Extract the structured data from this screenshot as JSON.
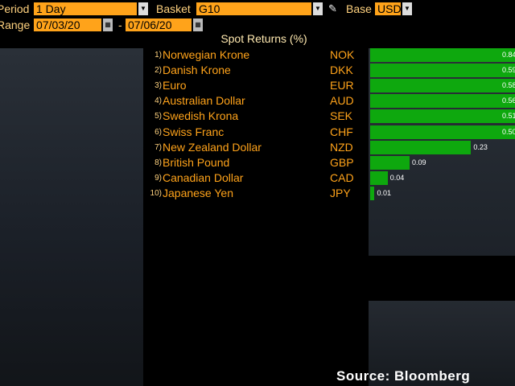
{
  "toolbar": {
    "period_label": "Period",
    "period_value": "1 Day",
    "basket_label": "Basket",
    "basket_value": "G10",
    "base_label": "Base",
    "base_value": "USD",
    "range_label": "Range",
    "range_start": "07/03/20",
    "range_sep": "-",
    "range_end": "07/06/20"
  },
  "chart_title": "Spot Returns (%)",
  "chart_data": {
    "type": "bar",
    "title": "Spot Returns (%)",
    "categories": [
      "Norwegian Krone",
      "Danish Krone",
      "Euro",
      "Australian Dollar",
      "Swedish Krona",
      "Swiss Franc",
      "New Zealand Dollar",
      "British Pound",
      "Canadian Dollar",
      "Japanese Yen"
    ],
    "codes": [
      "NOK",
      "DKK",
      "EUR",
      "AUD",
      "SEK",
      "CHF",
      "NZD",
      "GBP",
      "CAD",
      "JPY"
    ],
    "values": [
      0.84,
      0.59,
      0.58,
      0.56,
      0.51,
      0.5,
      0.23,
      0.09,
      0.04,
      0.01
    ],
    "value_labels": [
      "0.84",
      "0.59",
      "0.58",
      "0.56",
      "0.51",
      "0.50",
      "0.23",
      "0.09",
      "0.04",
      "0.01"
    ],
    "bar_color": "#0ea80e"
  },
  "rows": [
    {
      "rank": "1)",
      "name": "Norwegian Krone",
      "code": "NOK"
    },
    {
      "rank": "2)",
      "name": "Danish Krone",
      "code": "DKK"
    },
    {
      "rank": "3)",
      "name": "Euro",
      "code": "EUR"
    },
    {
      "rank": "4)",
      "name": "Australian Dollar",
      "code": "AUD"
    },
    {
      "rank": "5)",
      "name": "Swedish Krona",
      "code": "SEK"
    },
    {
      "rank": "6)",
      "name": "Swiss Franc",
      "code": "CHF"
    },
    {
      "rank": "7)",
      "name": "New Zealand Dollar",
      "code": "NZD"
    },
    {
      "rank": "8)",
      "name": "British Pound",
      "code": "GBP"
    },
    {
      "rank": "9)",
      "name": "Canadian Dollar",
      "code": "CAD"
    },
    {
      "rank": "10)",
      "name": "Japanese Yen",
      "code": "JPY"
    }
  ],
  "source": "Source: Bloomberg",
  "colors": {
    "accent": "#ffa31a",
    "bar": "#0ea80e",
    "background": "#000000"
  },
  "icons": {
    "dropdown": "chevron-down-icon",
    "pen": "pen-icon",
    "calendar": "calendar-icon"
  }
}
